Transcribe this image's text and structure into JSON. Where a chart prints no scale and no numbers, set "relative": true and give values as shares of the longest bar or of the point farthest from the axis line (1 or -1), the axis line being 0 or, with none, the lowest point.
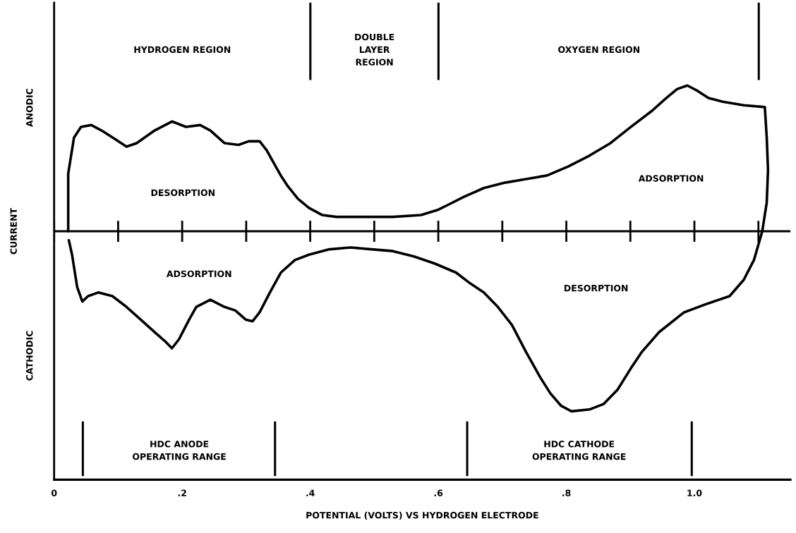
{
  "chart_data": {
    "type": "line",
    "relative": true,
    "xlabel": "POTENTIAL (VOLTS) VS HYDROGEN ELECTRODE",
    "ylabel": "CURRENT",
    "xlim": [
      0,
      1.15
    ],
    "xticks": [
      0,
      {
        "value": 0.2,
        "label": ".2"
      },
      {
        "value": 0.4,
        "label": ".4"
      },
      {
        "value": 0.6,
        "label": ".6"
      },
      {
        "value": 0.8,
        "label": ".8"
      },
      {
        "value": 1.0,
        "label": "1.0"
      }
    ],
    "grid": false,
    "marker": "none",
    "line_style": "solid",
    "ref_lines": [
      {
        "axis": "y",
        "value": 0,
        "color": "#000000"
      }
    ],
    "series": [
      {
        "color": "#000000",
        "x": [
          0.022,
          0.022,
          0.031,
          0.042,
          0.058,
          0.074,
          0.096,
          0.113,
          0.129,
          0.157,
          0.184,
          0.206,
          0.228,
          0.244,
          0.266,
          0.288,
          0.304,
          0.321,
          0.332,
          0.343,
          0.354,
          0.365,
          0.381,
          0.398,
          0.419,
          0.441,
          0.485,
          0.529,
          0.573,
          0.6,
          0.617,
          0.639,
          0.671,
          0.704,
          0.737,
          0.77,
          0.803,
          0.836,
          0.869,
          0.901,
          0.934,
          0.956,
          0.973,
          0.989,
          1.005,
          1.022,
          1.044,
          1.077,
          1.11,
          1.113,
          1.115,
          1.113,
          1.106,
          1.093,
          1.077,
          1.055,
          1.022,
          0.984,
          0.945,
          0.918,
          0.901,
          0.88,
          0.858,
          0.836,
          0.808,
          0.792,
          0.775,
          0.759,
          0.737,
          0.715,
          0.693,
          0.671,
          0.65,
          0.628,
          0.595,
          0.562,
          0.529,
          0.496,
          0.463,
          0.43,
          0.398,
          0.376,
          0.354,
          0.337,
          0.321,
          0.31,
          0.299,
          0.283,
          0.266,
          0.244,
          0.222,
          0.211,
          0.195,
          0.184,
          0.173,
          0.157,
          0.135,
          0.113,
          0.091,
          0.069,
          0.053,
          0.044,
          0.036,
          0.028,
          0.023
        ],
        "values": [
          0,
          0.32,
          0.52,
          0.58,
          0.59,
          0.56,
          0.51,
          0.47,
          0.49,
          0.56,
          0.61,
          0.58,
          0.59,
          0.56,
          0.49,
          0.48,
          0.5,
          0.5,
          0.45,
          0.38,
          0.31,
          0.25,
          0.18,
          0.13,
          0.09,
          0.08,
          0.08,
          0.08,
          0.09,
          0.12,
          0.15,
          0.19,
          0.24,
          0.27,
          0.29,
          0.31,
          0.36,
          0.42,
          0.49,
          0.58,
          0.67,
          0.74,
          0.79,
          0.81,
          0.78,
          0.74,
          0.72,
          0.7,
          0.69,
          0.52,
          0.34,
          0.16,
          0,
          -0.16,
          -0.27,
          -0.36,
          -0.4,
          -0.45,
          -0.56,
          -0.67,
          -0.76,
          -0.88,
          -0.96,
          -0.99,
          -1,
          -0.97,
          -0.9,
          -0.81,
          -0.67,
          -0.52,
          -0.42,
          -0.34,
          -0.29,
          -0.23,
          -0.18,
          -0.14,
          -0.11,
          -0.1,
          -0.09,
          -0.1,
          -0.13,
          -0.16,
          -0.23,
          -0.34,
          -0.45,
          -0.5,
          -0.49,
          -0.44,
          -0.42,
          -0.38,
          -0.42,
          -0.49,
          -0.6,
          -0.65,
          -0.61,
          -0.56,
          -0.49,
          -0.42,
          -0.36,
          -0.34,
          -0.36,
          -0.39,
          -0.31,
          -0.13,
          -0.05
        ]
      }
    ],
    "annotations": [
      "ANODIC",
      "CATHODIC",
      "DESORPTION",
      "ADSORPTION",
      "ADSORPTION",
      "DESORPTION",
      "HYDROGEN REGION",
      "DOUBLE\nLAYER\nREGION",
      "OXYGEN REGION",
      "HDC ANODE\nOPERATING RANGE",
      "HDC CATHODE\nOPERATING RANGE"
    ]
  }
}
